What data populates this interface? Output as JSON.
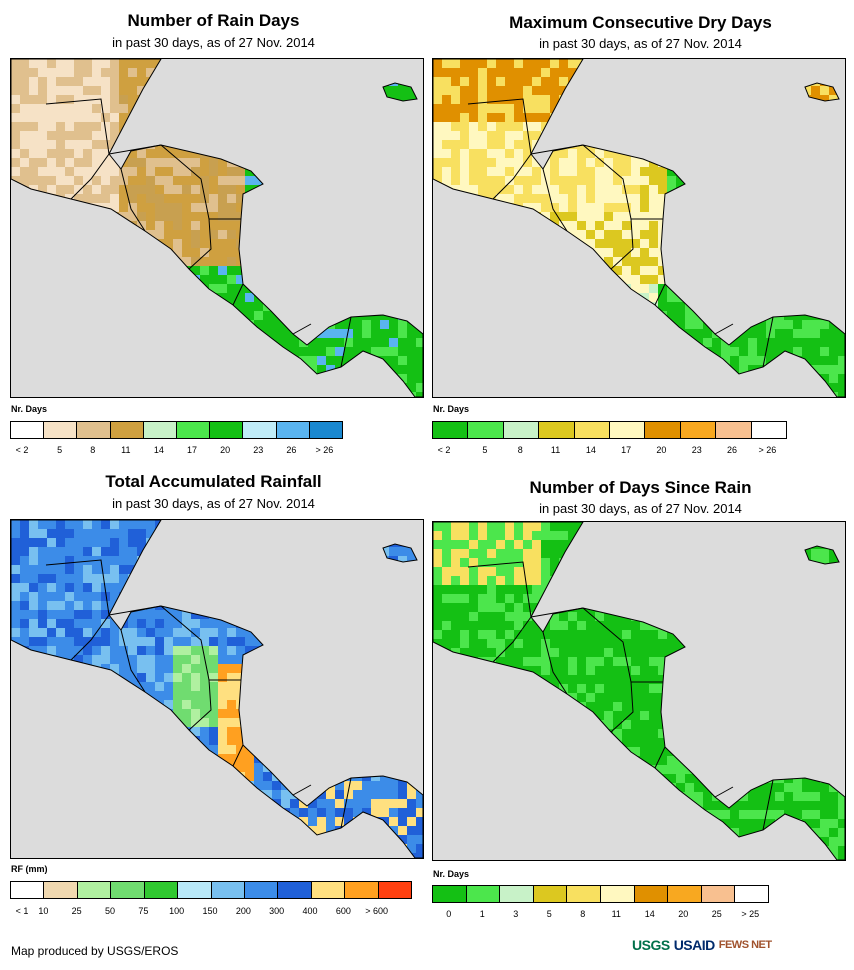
{
  "panels": [
    {
      "title": "Number of Rain Days",
      "subtitle": "in past 30 days, as of 27 Nov. 2014",
      "legend": {
        "label": "Nr. Days",
        "colors": [
          "#ffffff",
          "#f6e2c6",
          "#e0c08e",
          "#cfa040",
          "#c8f2c8",
          "#4ce64c",
          "#14c014",
          "#c0ecf8",
          "#5ab4f0",
          "#1a88d0"
        ],
        "ticks": [
          "< 2",
          "5",
          "8",
          "11",
          "14",
          "17",
          "20",
          "23",
          "26",
          "> 26"
        ]
      }
    },
    {
      "title": "Maximum Consecutive Dry Days",
      "subtitle": "in past 30 days, as of 27 Nov. 2014",
      "legend": {
        "label": "Nr. Days",
        "colors": [
          "#14c014",
          "#4ce64c",
          "#c8f2c8",
          "#dcc820",
          "#f8e060",
          "#fff8c0",
          "#e09000",
          "#f8a820",
          "#f8c090",
          "#ffffff"
        ],
        "ticks": [
          "< 2",
          "5",
          "8",
          "11",
          "14",
          "17",
          "20",
          "23",
          "26",
          "> 26"
        ]
      }
    },
    {
      "title": "Total Accumulated Rainfall",
      "subtitle": "in past 30 days, as of 27 Nov. 2014",
      "legend": {
        "label": "RF (mm)",
        "colors": [
          "#ffffff",
          "#f0d8b0",
          "#b0f0a0",
          "#70dc70",
          "#30c830",
          "#b8e8f8",
          "#78c0f0",
          "#3c8ce8",
          "#2060d8",
          "#ffe080",
          "#ffa020",
          "#ff4010"
        ],
        "ticks": [
          "< 1",
          "10",
          "25",
          "50",
          "75",
          "100",
          "150",
          "200",
          "300",
          "400",
          "600",
          "> 600"
        ]
      }
    },
    {
      "title": "Number of Days Since Rain",
      "subtitle": "in past 30 days, as of 27 Nov. 2014",
      "legend": {
        "label": "Nr. Days",
        "colors": [
          "#14c014",
          "#4ce64c",
          "#c8f2c8",
          "#dcc820",
          "#f8e060",
          "#fff8c0",
          "#e09000",
          "#f8a820",
          "#f8c090",
          "#ffffff"
        ],
        "ticks": [
          "0",
          "1",
          "3",
          "5",
          "8",
          "11",
          "14",
          "20",
          "25",
          "> 25"
        ]
      }
    }
  ],
  "footer": {
    "credit": "Map produced by USGS/EROS",
    "logos": [
      "USGS",
      "USAID",
      "FEWS NET"
    ]
  }
}
